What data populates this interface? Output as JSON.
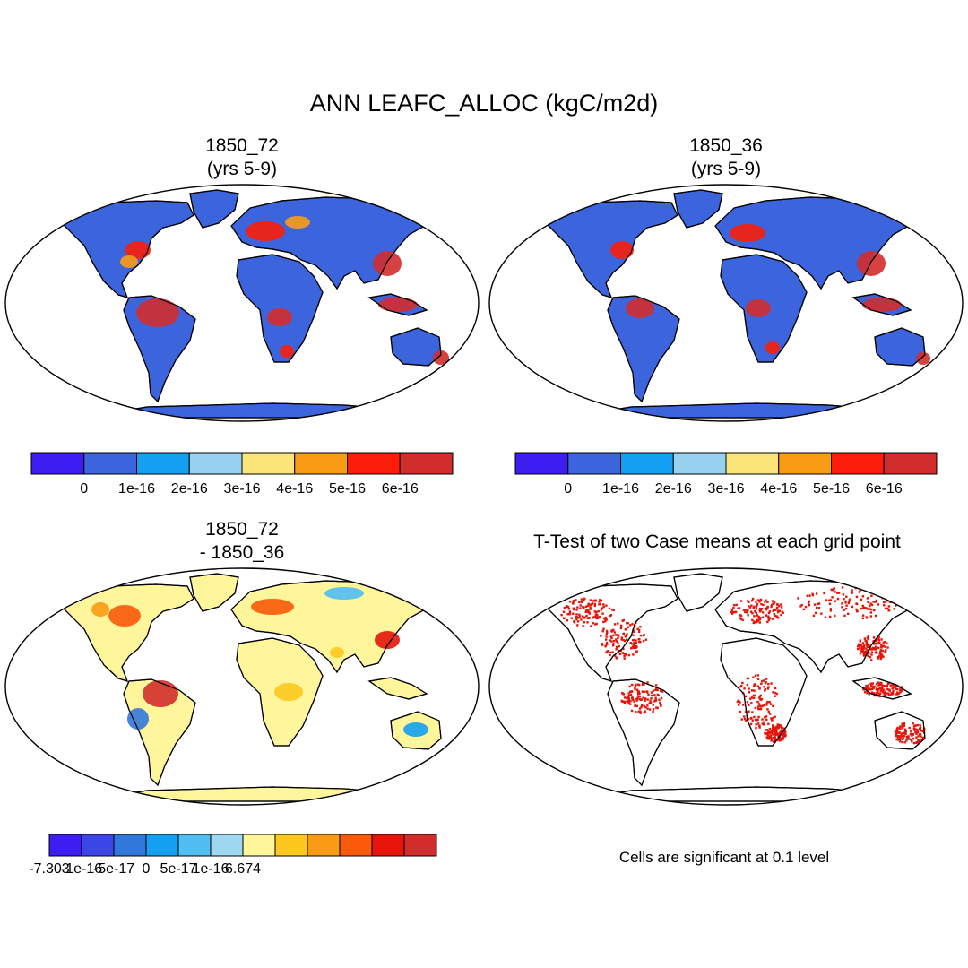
{
  "figure": {
    "title": "ANN LEAFC_ALLOC (kgC/m2d)"
  },
  "panels": {
    "p1": {
      "title_line1": "1850_72",
      "title_line2": "(yrs 5-9)"
    },
    "p2": {
      "title_line1": "1850_36",
      "title_line2": "(yrs 5-9)"
    },
    "p3": {
      "title_line1": "1850_72",
      "title_line2": "- 1850_36"
    },
    "p4": {
      "title_line1": "T-Test of two Case means at each grid point"
    }
  },
  "colorbars": {
    "top": {
      "colors": [
        "#3c1ef0",
        "#3c64dc",
        "#14a0f0",
        "#96d2f0",
        "#fae678",
        "#fa9b14",
        "#fa1e0a",
        "#d22d2d"
      ],
      "labels": [
        "0",
        "1e-16",
        "2e-16",
        "3e-16",
        "4e-16",
        "5e-16",
        "6e-16"
      ]
    },
    "diff": {
      "colors": [
        "#3c1ef0",
        "#3c46e6",
        "#3278dc",
        "#14a0f0",
        "#50bef0",
        "#a0d7f0",
        "#fff59b",
        "#fcc81e",
        "#fa9b14",
        "#fa5a0a",
        "#e6140a",
        "#d22d2d"
      ],
      "labels": [
        "-7.303",
        "-1e-16",
        "-5e-17",
        "0",
        "5e-17",
        "1e-16",
        "6.674"
      ]
    }
  },
  "significance_note": "Cells are significant at 0.1 level"
}
